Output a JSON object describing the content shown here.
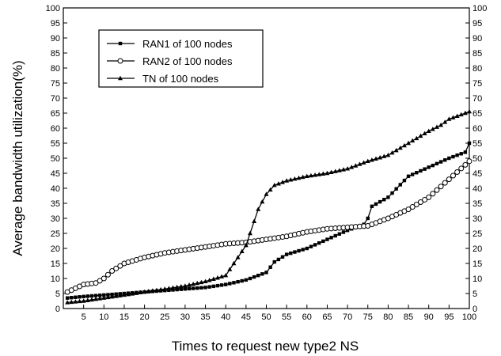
{
  "chart_data": {
    "type": "line",
    "xlabel": "Times to request new type2 NS",
    "ylabel": "Average bandwidth utilization(%)",
    "xlim": [
      0,
      100
    ],
    "ylim": [
      0,
      100
    ],
    "x_ticks": [
      5,
      10,
      15,
      20,
      25,
      30,
      35,
      40,
      45,
      50,
      55,
      60,
      65,
      70,
      75,
      80,
      85,
      90,
      95,
      100
    ],
    "y_ticks": [
      0,
      5,
      10,
      15,
      20,
      25,
      30,
      35,
      40,
      45,
      50,
      55,
      60,
      65,
      70,
      75,
      80,
      85,
      90,
      95,
      100
    ],
    "right_axis_ticks": true,
    "grid": false,
    "legend_position": "top-left",
    "series": [
      {
        "name": "RAN1 of 100 nodes",
        "marker": "filled-square",
        "color": "#000000",
        "x": [
          1,
          5,
          10,
          15,
          20,
          25,
          30,
          35,
          40,
          45,
          50,
          52,
          55,
          60,
          65,
          70,
          74,
          75,
          76,
          80,
          85,
          90,
          95,
          99,
          100
        ],
        "y": [
          3.5,
          4,
          4.5,
          5,
          5.5,
          6,
          6.5,
          7,
          8,
          9.5,
          12,
          15.5,
          18,
          20,
          23,
          26,
          28,
          30,
          34,
          37,
          44,
          47,
          50,
          52,
          55
        ]
      },
      {
        "name": "RAN2 of 100 nodes",
        "marker": "open-circle",
        "color": "#000000",
        "x": [
          1,
          5,
          8,
          10,
          12,
          15,
          20,
          25,
          30,
          35,
          40,
          45,
          50,
          55,
          60,
          65,
          70,
          75,
          80,
          85,
          90,
          95,
          100
        ],
        "y": [
          5.5,
          8,
          8.5,
          10,
          12.5,
          15,
          17,
          18.5,
          19.5,
          20.5,
          21.5,
          22,
          23,
          24,
          25.5,
          26.5,
          27,
          27.5,
          30,
          33,
          37,
          43,
          49
        ]
      },
      {
        "name": "TN of 100 nodes",
        "marker": "filled-triangle",
        "color": "#000000",
        "x": [
          1,
          5,
          10,
          15,
          20,
          25,
          30,
          35,
          40,
          42,
          45,
          48,
          50,
          52,
          55,
          60,
          65,
          70,
          75,
          80,
          85,
          90,
          93,
          95,
          100
        ],
        "y": [
          2,
          2.5,
          3.5,
          4.5,
          5.5,
          6.5,
          7.5,
          9,
          11,
          15,
          21,
          33,
          38,
          41,
          42.5,
          44,
          45,
          46.5,
          49,
          51,
          55,
          59,
          61,
          63,
          65.5
        ]
      }
    ]
  }
}
